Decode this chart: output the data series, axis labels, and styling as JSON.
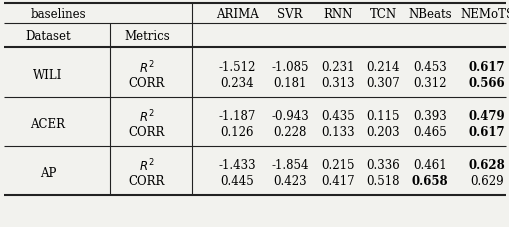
{
  "rows": [
    {
      "dataset": "WILI",
      "values": [
        [
          "-1.512",
          "-1.085",
          "0.231",
          "0.214",
          "0.453",
          "0.617"
        ],
        [
          "0.234",
          "0.181",
          "0.313",
          "0.307",
          "0.312",
          "0.566"
        ]
      ],
      "bold": [
        [
          false,
          false,
          false,
          false,
          false,
          true
        ],
        [
          false,
          false,
          false,
          false,
          false,
          true
        ]
      ]
    },
    {
      "dataset": "ACER",
      "values": [
        [
          "-1.187",
          "-0.943",
          "0.435",
          "0.115",
          "0.393",
          "0.479"
        ],
        [
          "0.126",
          "0.228",
          "0.133",
          "0.203",
          "0.465",
          "0.617"
        ]
      ],
      "bold": [
        [
          false,
          false,
          false,
          false,
          false,
          true
        ],
        [
          false,
          false,
          false,
          false,
          false,
          true
        ]
      ]
    },
    {
      "dataset": "AP",
      "values": [
        [
          "-1.433",
          "-1.854",
          "0.215",
          "0.336",
          "0.461",
          "0.628"
        ],
        [
          "0.445",
          "0.423",
          "0.417",
          "0.518",
          "0.658",
          "0.629"
        ]
      ],
      "bold": [
        [
          false,
          false,
          false,
          false,
          false,
          true
        ],
        [
          false,
          false,
          false,
          false,
          true,
          false
        ]
      ]
    }
  ],
  "methods": [
    "ARIMA",
    "SVR",
    "RNN",
    "TCN",
    "NBeats",
    "NEMoTS"
  ],
  "background_color": "#f2f2ee",
  "line_color": "#222222",
  "font_size": 8.5
}
